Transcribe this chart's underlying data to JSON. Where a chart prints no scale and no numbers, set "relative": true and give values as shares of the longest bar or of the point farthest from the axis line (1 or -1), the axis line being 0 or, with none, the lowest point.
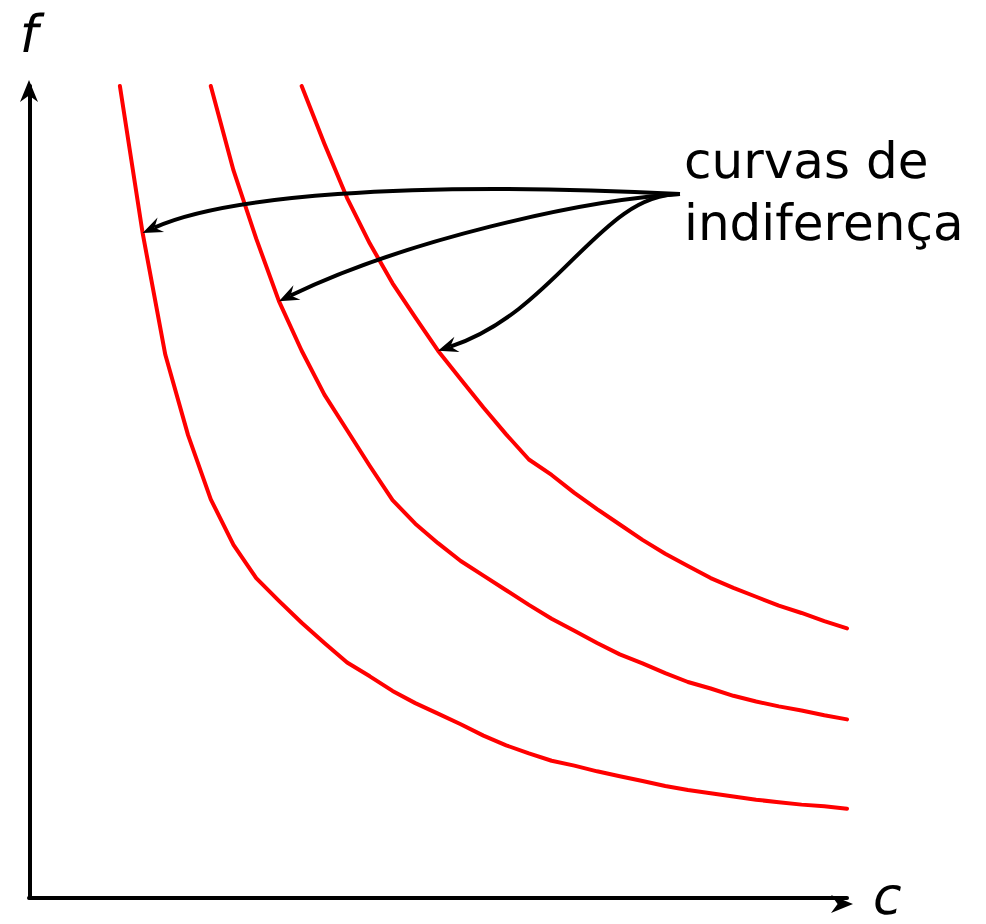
{
  "chart_data": {
    "type": "line",
    "relative": true,
    "xlabel": "c",
    "ylabel": "f",
    "marker": "none",
    "line_style": "solid",
    "grid": false,
    "categories": [
      null,
      null,
      null,
      null,
      null,
      null,
      null,
      null,
      null,
      null,
      null,
      null,
      null,
      null,
      null,
      null,
      null,
      null,
      null,
      null,
      null,
      null,
      null,
      null,
      null,
      null,
      null,
      null,
      null,
      null,
      null,
      null,
      null,
      null,
      null,
      null,
      null
    ],
    "series": [
      {
        "color": "#ff0000",
        "values": [
          null,
          null,
          null,
          null,
          1.0,
          0.819,
          0.669,
          0.57,
          0.491,
          0.435,
          0.394,
          0.366,
          0.339,
          0.314,
          0.29,
          0.273,
          0.255,
          0.24,
          0.227,
          0.214,
          0.2,
          0.188,
          0.178,
          0.169,
          0.163,
          0.156,
          0.15,
          0.144,
          0.138,
          0.133,
          0.129,
          0.125,
          0.121,
          0.118,
          0.115,
          0.113,
          0.11
        ]
      },
      {
        "color": "#ff0000",
        "values": [
          null,
          null,
          null,
          null,
          null,
          null,
          null,
          null,
          1.0,
          0.896,
          0.812,
          0.735,
          0.674,
          0.62,
          0.576,
          0.532,
          0.49,
          0.461,
          0.437,
          0.415,
          0.397,
          0.379,
          0.361,
          0.344,
          0.329,
          0.314,
          0.3,
          0.289,
          0.277,
          0.266,
          0.258,
          0.249,
          0.242,
          0.236,
          0.231,
          0.225,
          0.22
        ]
      },
      {
        "color": "#ff0000",
        "values": [
          null,
          null,
          null,
          null,
          null,
          null,
          null,
          null,
          null,
          null,
          null,
          null,
          1.0,
          0.929,
          0.862,
          0.806,
          0.757,
          0.715,
          0.674,
          0.639,
          0.604,
          0.571,
          0.54,
          0.521,
          0.499,
          0.479,
          0.46,
          0.441,
          0.424,
          0.409,
          0.394,
          0.382,
          0.371,
          0.36,
          0.351,
          0.341,
          0.332
        ]
      }
    ],
    "annotations": [
      "curvas de indiferença"
    ]
  }
}
